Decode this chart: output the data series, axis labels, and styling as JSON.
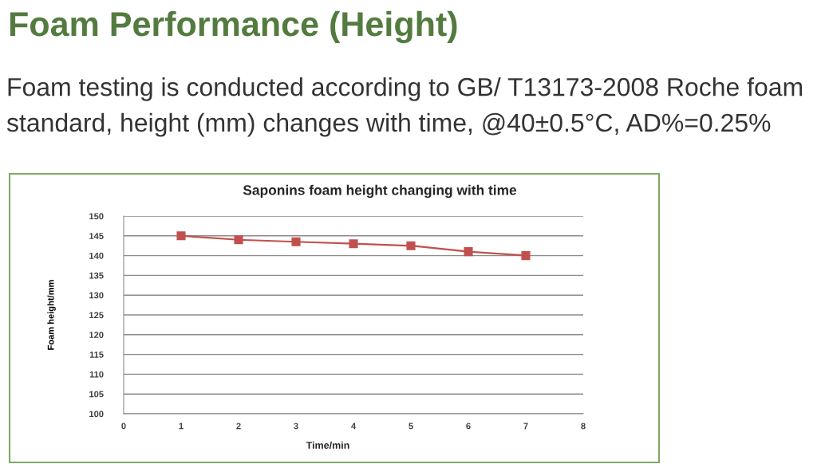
{
  "chart_data": {
    "type": "line",
    "title": "Foam Performance (Height)",
    "subtitle": "Foam testing is conducted according to GB/ T13173-2008 Roche foam standard, height (mm) changes with time, @40±0.5°C, AD%=0.25%",
    "annotations": [
      "Saponins foam height changing with time"
    ],
    "xlabel": "Time/min",
    "ylabel": "Foam height/mm",
    "x": [
      1,
      2,
      3,
      4,
      5,
      6,
      7
    ],
    "series": [
      {
        "color": "#c0504d",
        "values": [
          145,
          144,
          143.5,
          143,
          142.5,
          141,
          140
        ]
      }
    ],
    "xlim": [
      0,
      8
    ],
    "xticks": [
      0,
      1,
      2,
      3,
      4,
      5,
      6,
      7,
      8
    ],
    "ylim": [
      100,
      150
    ],
    "yticks": [
      100,
      105,
      110,
      115,
      120,
      125,
      130,
      135,
      140,
      145,
      150
    ],
    "grid": "y",
    "marker": "square",
    "line_style": "solid"
  }
}
